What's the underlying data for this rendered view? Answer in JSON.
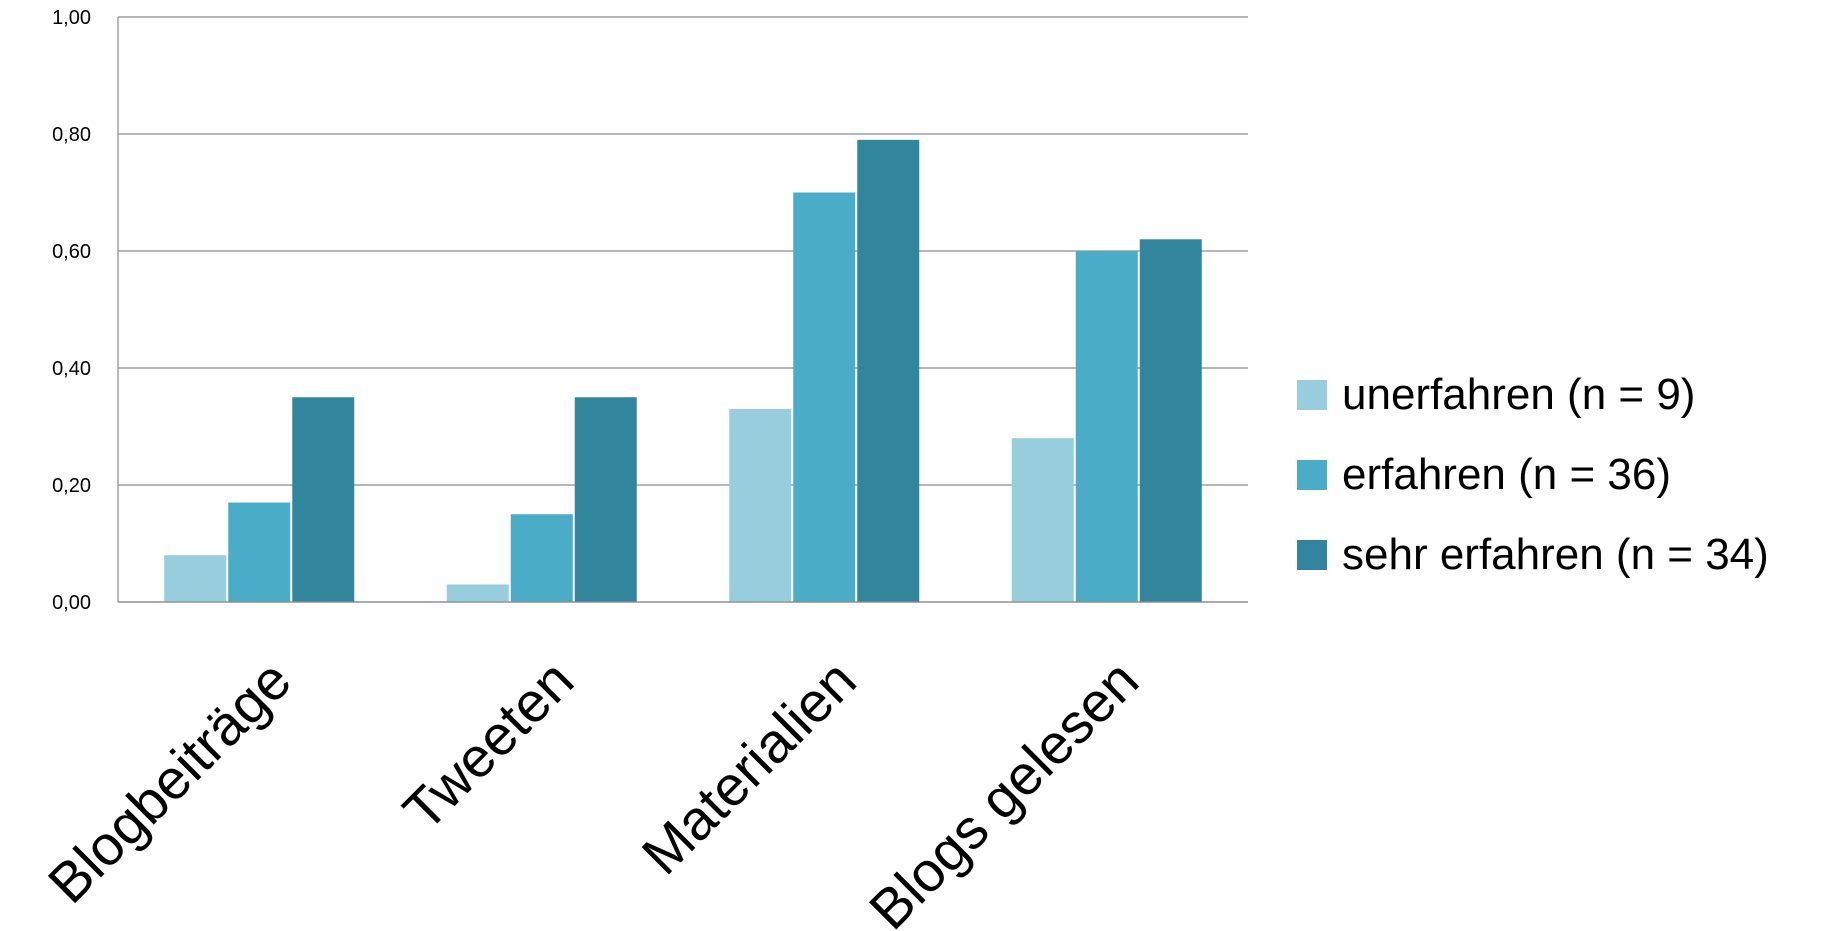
{
  "chart_data": {
    "type": "bar",
    "title": "",
    "xlabel": "",
    "ylabel": "",
    "categories": [
      "Blogbeiträge",
      "Tweeten",
      "Materialien",
      "Blogs gelesen"
    ],
    "series": [
      {
        "name": "unerfahren (n = 9)",
        "values": [
          0.08,
          0.03,
          0.33,
          0.28
        ],
        "color": "#97CDDD"
      },
      {
        "name": "erfahren (n = 36)",
        "values": [
          0.17,
          0.15,
          0.7,
          0.6
        ],
        "color": "#4AACC6"
      },
      {
        "name": "sehr erfahren (n = 34)",
        "values": [
          0.35,
          0.35,
          0.79,
          0.62
        ],
        "color": "#31859C"
      }
    ],
    "ylim": [
      0,
      1
    ],
    "yticks": [
      0,
      0.2,
      0.4,
      0.6,
      0.8,
      1.0
    ],
    "ytick_labels": [
      "0,00",
      "0,20",
      "0,40",
      "0,60",
      "0,80",
      "1,00"
    ],
    "grid": true,
    "legend_position": "right"
  }
}
